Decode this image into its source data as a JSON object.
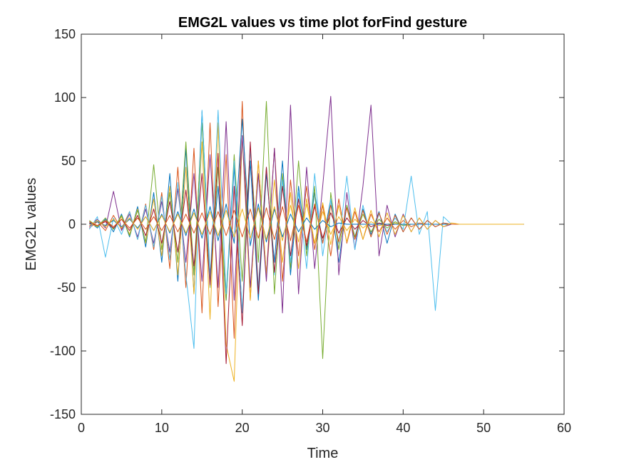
{
  "chart_data": {
    "type": "line",
    "title": "EMG2L values vs time plot forFind gesture",
    "xlabel": "Time",
    "ylabel": "EMG2L values",
    "xlim": [
      0,
      60
    ],
    "ylim": [
      -150,
      150
    ],
    "xticks": [
      0,
      10,
      20,
      30,
      40,
      50,
      60
    ],
    "yticks": [
      -150,
      -100,
      -50,
      0,
      50,
      100,
      150
    ],
    "grid": false,
    "legend": "none",
    "colors": [
      "#0072BD",
      "#D95319",
      "#EDB120",
      "#7E2F8E",
      "#77AC30",
      "#4DBEEE",
      "#A2142F"
    ],
    "x": [
      1,
      2,
      3,
      4,
      5,
      6,
      7,
      8,
      9,
      10,
      11,
      12,
      13,
      14,
      15,
      16,
      17,
      18,
      19,
      20,
      21,
      22,
      23,
      24,
      25,
      26,
      27,
      28,
      29,
      30,
      31,
      32,
      33,
      34,
      35,
      36,
      37,
      38,
      39,
      40,
      41,
      42,
      43,
      44,
      45,
      46,
      47,
      48,
      49,
      50,
      51,
      52,
      53,
      54,
      55
    ],
    "series": [
      {
        "values": [
          2,
          -3,
          4,
          -6,
          8,
          -10,
          14,
          -18,
          25,
          -30,
          40,
          -45,
          60,
          -55,
          89,
          -40,
          30,
          -60,
          45,
          -70,
          50,
          -60,
          40,
          -30,
          50,
          -40,
          30,
          -20,
          25,
          -15,
          20,
          -30,
          15,
          -10,
          12,
          -8,
          10,
          -15,
          8,
          -6,
          5,
          -4,
          3,
          -2,
          1,
          0,
          0,
          0,
          0,
          0,
          0,
          0,
          0,
          0,
          0
        ]
      },
      {
        "values": [
          -3,
          2,
          -5,
          7,
          -4,
          10,
          -12,
          16,
          -20,
          25,
          -35,
          45,
          -50,
          60,
          -70,
          80,
          -65,
          55,
          -90,
          97,
          -60,
          50,
          -40,
          60,
          -45,
          35,
          -25,
          30,
          -20,
          15,
          -25,
          20,
          -15,
          10,
          -12,
          8,
          -6,
          5,
          -4,
          3,
          -2,
          1,
          0,
          0,
          0,
          0,
          0,
          0,
          0,
          0,
          0,
          0,
          0,
          0,
          0
        ]
      },
      {
        "values": [
          1,
          -2,
          3,
          -4,
          6,
          -8,
          12,
          -15,
          20,
          -25,
          30,
          -40,
          45,
          -55,
          65,
          -75,
          80,
          -95,
          -124,
          70,
          -60,
          50,
          -40,
          35,
          -30,
          25,
          -35,
          20,
          -15,
          10,
          -8,
          6,
          -5,
          4,
          -3,
          2,
          -1,
          0,
          1,
          -1,
          0,
          0,
          0,
          0,
          0,
          0,
          0,
          0,
          0,
          0,
          0,
          0,
          0,
          0,
          0
        ]
      },
      {
        "values": [
          -2,
          4,
          -3,
          26,
          -5,
          8,
          -10,
          12,
          -15,
          18,
          -22,
          28,
          -30,
          40,
          -45,
          55,
          -50,
          81,
          -60,
          70,
          -50,
          40,
          -45,
          60,
          -70,
          94,
          -55,
          45,
          -35,
          30,
          101,
          -40,
          25,
          -20,
          30,
          94,
          -25,
          15,
          -10,
          8,
          -6,
          5,
          -4,
          3,
          -2,
          0,
          0,
          0,
          0,
          0,
          0,
          0,
          0,
          0,
          0
        ]
      },
      {
        "values": [
          3,
          -2,
          5,
          -4,
          7,
          -9,
          11,
          -14,
          47,
          -20,
          25,
          -30,
          65,
          -40,
          80,
          -50,
          45,
          -60,
          55,
          -45,
          60,
          -30,
          97,
          -55,
          40,
          -35,
          50,
          -25,
          30,
          -106,
          25,
          -20,
          15,
          -10,
          8,
          -6,
          4,
          -3,
          2,
          -1,
          0,
          0,
          0,
          0,
          0,
          0,
          0,
          0,
          0,
          0,
          0,
          0,
          0,
          0,
          0
        ]
      },
      {
        "values": [
          -4,
          6,
          -26,
          5,
          -8,
          10,
          -12,
          15,
          -18,
          22,
          -28,
          33,
          -40,
          -98,
          90,
          -45,
          90,
          -55,
          50,
          -70,
          60,
          -50,
          45,
          -40,
          35,
          -30,
          25,
          -35,
          40,
          -25,
          20,
          -15,
          38,
          -20,
          15,
          -10,
          8,
          -6,
          5,
          -4,
          38,
          -8,
          10,
          -68,
          6,
          0,
          0,
          0,
          0,
          0,
          0,
          0,
          0,
          0,
          0
        ]
      },
      {
        "values": [
          1,
          -1,
          2,
          -3,
          4,
          -5,
          7,
          -9,
          12,
          -15,
          18,
          -22,
          27,
          -33,
          40,
          -48,
          56,
          -110,
          30,
          -80,
          65,
          -55,
          45,
          -38,
          30,
          -25,
          20,
          -17,
          14,
          -11,
          9,
          -7,
          5,
          -4,
          3,
          -2,
          1,
          -1,
          0,
          0,
          0,
          0,
          0,
          0,
          0,
          0,
          0,
          0,
          0,
          0,
          0,
          0,
          0,
          0,
          0
        ]
      },
      {
        "values": [
          0,
          2,
          -1,
          3,
          -2,
          4,
          -3,
          6,
          -5,
          8,
          -7,
          10,
          -9,
          12,
          -11,
          14,
          -13,
          16,
          -15,
          83,
          -17,
          16,
          -14,
          12,
          -10,
          8,
          -6,
          5,
          -4,
          3,
          -2,
          1,
          0,
          0,
          0,
          0,
          0,
          0,
          0,
          0,
          0,
          0,
          0,
          0,
          0,
          0,
          0,
          0,
          0,
          0,
          0,
          0,
          0,
          0,
          0
        ]
      },
      {
        "values": [
          2,
          -1,
          3,
          -2,
          4,
          -3,
          5,
          -4,
          6,
          -5,
          7,
          -6,
          8,
          -7,
          9,
          -8,
          10,
          -9,
          11,
          -10,
          12,
          -11,
          13,
          -12,
          14,
          -13,
          15,
          -14,
          16,
          -15,
          15,
          -14,
          13,
          -12,
          11,
          -10,
          9,
          -8,
          7,
          -6,
          5,
          -4,
          3,
          -2,
          1,
          0,
          0,
          0,
          0,
          0,
          0,
          0,
          0,
          0,
          0
        ]
      },
      {
        "values": [
          -1,
          3,
          -2,
          4,
          -3,
          5,
          -4,
          6,
          -5,
          7,
          -6,
          8,
          -7,
          9,
          -8,
          10,
          -9,
          11,
          -10,
          12,
          -11,
          13,
          -12,
          14,
          -13,
          15,
          -14,
          16,
          -15,
          17,
          -16,
          15,
          -14,
          13,
          -12,
          11,
          -10,
          9,
          -8,
          7,
          -6,
          5,
          -4,
          3,
          -2,
          1,
          0,
          0,
          0,
          0,
          0,
          0,
          0,
          0,
          0
        ]
      }
    ]
  }
}
